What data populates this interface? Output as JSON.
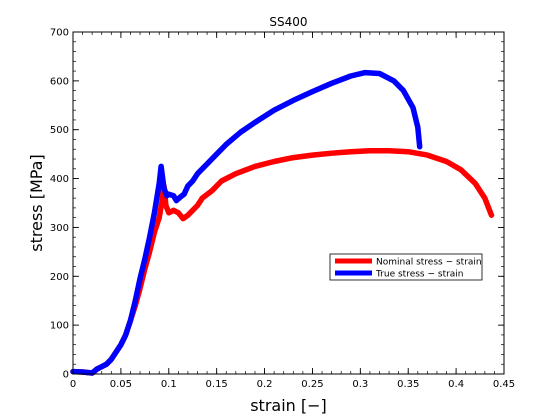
{
  "chart_data": {
    "type": "line",
    "title": "SS400",
    "xlabel": "strain [−]",
    "ylabel": "stress [MPa]",
    "xlim": [
      0,
      0.45
    ],
    "ylim": [
      0,
      700
    ],
    "xticks": [
      0,
      0.05,
      0.1,
      0.15,
      0.2,
      0.25,
      0.3,
      0.35,
      0.4,
      0.45
    ],
    "xtick_labels": [
      "0",
      "0.05",
      "0.1",
      "0.15",
      "0.2",
      "0.25",
      "0.3",
      "0.35",
      "0.4",
      "0.45"
    ],
    "yticks": [
      0,
      100,
      200,
      300,
      400,
      500,
      600,
      700
    ],
    "ytick_labels": [
      "0",
      "100",
      "200",
      "300",
      "400",
      "500",
      "600",
      "700"
    ],
    "grid": false,
    "legend_position": "center-right",
    "series": [
      {
        "name": "Nominal stress − strain",
        "color": "#ff0000",
        "points": [
          [
            0.0,
            5
          ],
          [
            0.01,
            4
          ],
          [
            0.02,
            2
          ],
          [
            0.025,
            10
          ],
          [
            0.03,
            15
          ],
          [
            0.035,
            20
          ],
          [
            0.04,
            30
          ],
          [
            0.045,
            45
          ],
          [
            0.05,
            60
          ],
          [
            0.055,
            80
          ],
          [
            0.06,
            110
          ],
          [
            0.065,
            140
          ],
          [
            0.07,
            175
          ],
          [
            0.075,
            215
          ],
          [
            0.08,
            250
          ],
          [
            0.085,
            290
          ],
          [
            0.09,
            320
          ],
          [
            0.093,
            355
          ],
          [
            0.095,
            385
          ],
          [
            0.097,
            345
          ],
          [
            0.1,
            330
          ],
          [
            0.105,
            335
          ],
          [
            0.11,
            330
          ],
          [
            0.115,
            318
          ],
          [
            0.12,
            325
          ],
          [
            0.125,
            335
          ],
          [
            0.13,
            345
          ],
          [
            0.135,
            360
          ],
          [
            0.145,
            375
          ],
          [
            0.155,
            395
          ],
          [
            0.17,
            410
          ],
          [
            0.19,
            425
          ],
          [
            0.21,
            435
          ],
          [
            0.23,
            443
          ],
          [
            0.25,
            448
          ],
          [
            0.27,
            452
          ],
          [
            0.29,
            455
          ],
          [
            0.31,
            457
          ],
          [
            0.33,
            457
          ],
          [
            0.35,
            455
          ],
          [
            0.37,
            448
          ],
          [
            0.39,
            435
          ],
          [
            0.405,
            418
          ],
          [
            0.42,
            390
          ],
          [
            0.43,
            360
          ],
          [
            0.437,
            325
          ]
        ]
      },
      {
        "name": "True stress − strain",
        "color": "#0000ff",
        "points": [
          [
            0.0,
            5
          ],
          [
            0.01,
            4
          ],
          [
            0.02,
            2
          ],
          [
            0.025,
            10
          ],
          [
            0.03,
            15
          ],
          [
            0.035,
            20
          ],
          [
            0.04,
            30
          ],
          [
            0.045,
            45
          ],
          [
            0.05,
            60
          ],
          [
            0.055,
            80
          ],
          [
            0.06,
            110
          ],
          [
            0.065,
            150
          ],
          [
            0.07,
            195
          ],
          [
            0.075,
            235
          ],
          [
            0.08,
            280
          ],
          [
            0.085,
            330
          ],
          [
            0.09,
            390
          ],
          [
            0.092,
            425
          ],
          [
            0.095,
            380
          ],
          [
            0.098,
            365
          ],
          [
            0.1,
            368
          ],
          [
            0.105,
            365
          ],
          [
            0.108,
            355
          ],
          [
            0.112,
            362
          ],
          [
            0.116,
            368
          ],
          [
            0.12,
            385
          ],
          [
            0.125,
            395
          ],
          [
            0.13,
            410
          ],
          [
            0.14,
            430
          ],
          [
            0.15,
            450
          ],
          [
            0.16,
            470
          ],
          [
            0.175,
            495
          ],
          [
            0.19,
            515
          ],
          [
            0.21,
            540
          ],
          [
            0.23,
            560
          ],
          [
            0.25,
            578
          ],
          [
            0.27,
            595
          ],
          [
            0.29,
            610
          ],
          [
            0.305,
            617
          ],
          [
            0.32,
            615
          ],
          [
            0.335,
            600
          ],
          [
            0.345,
            580
          ],
          [
            0.355,
            545
          ],
          [
            0.36,
            505
          ],
          [
            0.362,
            465
          ]
        ]
      }
    ]
  }
}
